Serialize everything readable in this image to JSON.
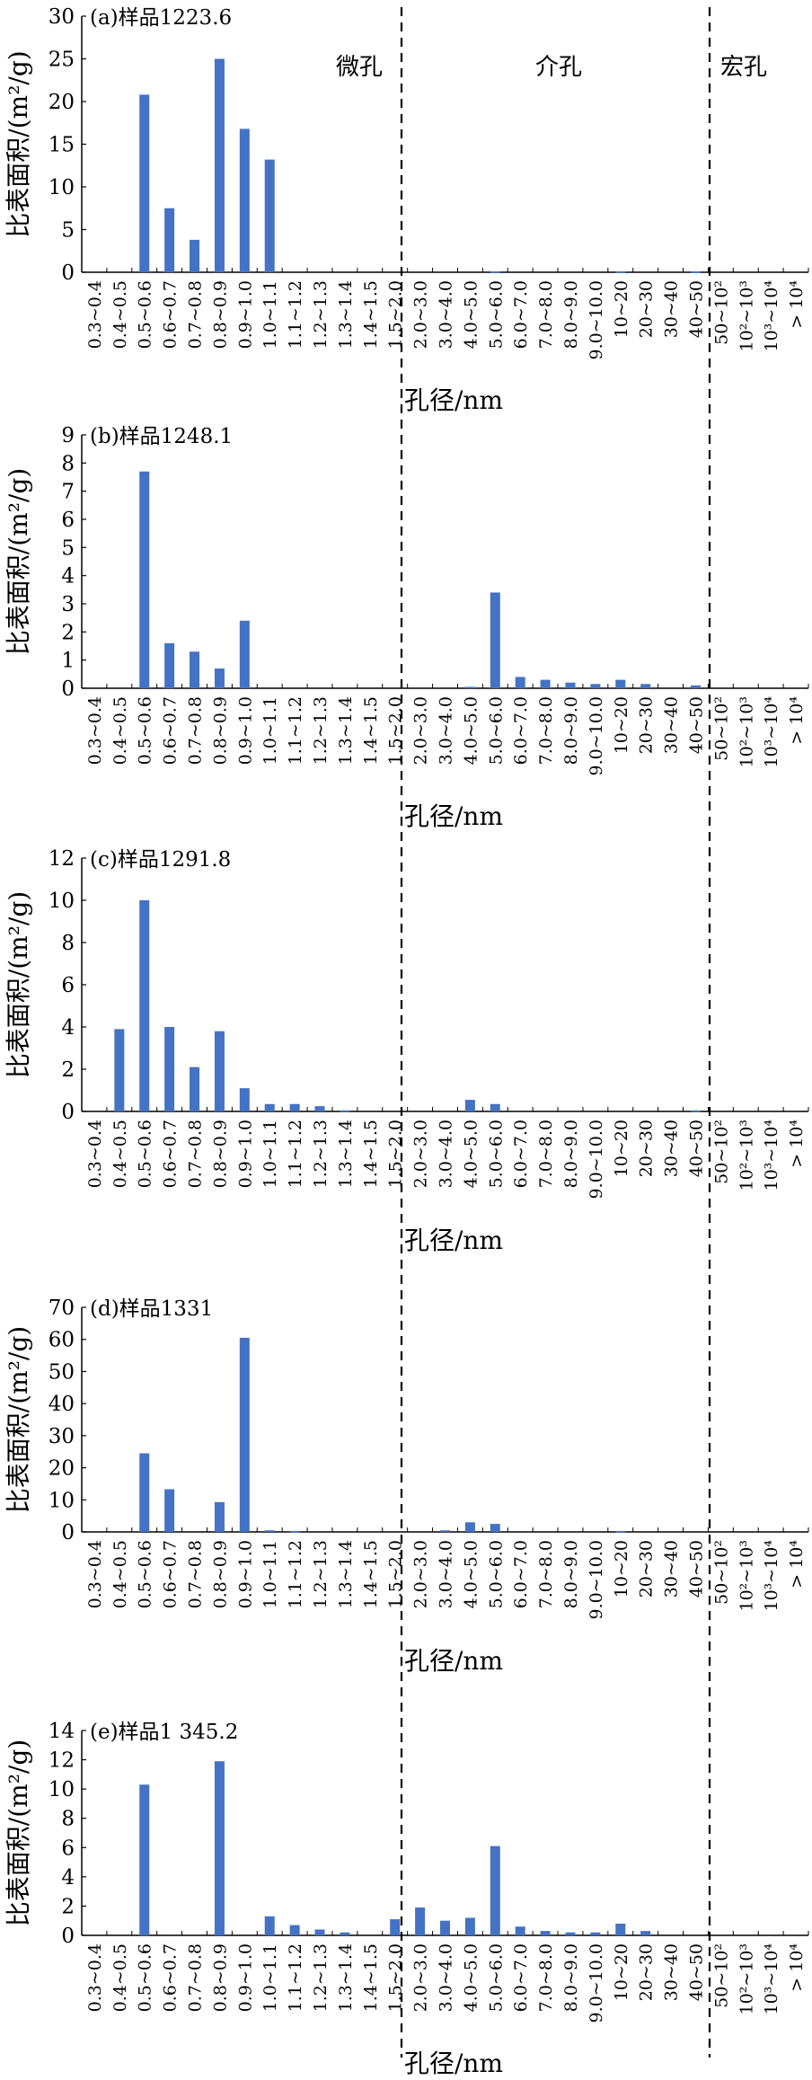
{
  "chart_data": [
    {
      "type": "bar",
      "title": "(a)样品1223.6",
      "xlabel": "孔径/nm",
      "ylabel": "比表面积/(m²/g)",
      "ylim": [
        0,
        30
      ],
      "yticks": [
        0,
        5,
        10,
        15,
        20,
        25,
        30
      ],
      "regions": [
        "微孔",
        "介孔",
        "宏孔"
      ],
      "categories": [
        "0.3~0.4",
        "0.4~0.5",
        "0.5~0.6",
        "0.6~0.7",
        "0.7~0.8",
        "0.8~0.9",
        "0.9~1.0",
        "1.0~1.1",
        "1.1~1.2",
        "1.2~1.3",
        "1.3~1.4",
        "1.4~1.5",
        "1.5~2.0",
        "2.0~3.0",
        "3.0~4.0",
        "4.0~5.0",
        "5.0~6.0",
        "6.0~7.0",
        "7.0~8.0",
        "8.0~9.0",
        "9.0~10.0",
        "10~20",
        "20~30",
        "30~40",
        "40~50",
        "50~10²",
        "10²~10³",
        "10³~10⁴",
        "> 10⁴"
      ],
      "values": [
        0,
        0,
        20.8,
        7.5,
        3.8,
        25.0,
        16.8,
        13.2,
        0,
        0,
        0,
        0,
        0,
        0,
        0,
        0,
        0.05,
        0,
        0,
        0,
        0,
        0.05,
        0,
        0,
        0.05,
        0,
        0,
        0,
        0
      ],
      "bar_color": "#4472C4"
    },
    {
      "type": "bar",
      "title": "(b)样品1248.1",
      "xlabel": "孔径/nm",
      "ylabel": "比表面积/(m²/g)",
      "ylim": [
        0,
        9
      ],
      "yticks": [
        0,
        1,
        2,
        3,
        4,
        5,
        6,
        7,
        8,
        9
      ],
      "categories": [
        "0.3~0.4",
        "0.4~0.5",
        "0.5~0.6",
        "0.6~0.7",
        "0.7~0.8",
        "0.8~0.9",
        "0.9~1.0",
        "1.0~1.1",
        "1.1~1.2",
        "1.2~1.3",
        "1.3~1.4",
        "1.4~1.5",
        "1.5~2.0",
        "2.0~3.0",
        "3.0~4.0",
        "4.0~5.0",
        "5.0~6.0",
        "6.0~7.0",
        "7.0~8.0",
        "8.0~9.0",
        "9.0~10.0",
        "10~20",
        "20~30",
        "30~40",
        "40~50",
        "50~10²",
        "10²~10³",
        "10³~10⁴",
        "> 10⁴"
      ],
      "values": [
        0,
        0,
        7.7,
        1.6,
        1.3,
        0.7,
        2.4,
        0,
        0,
        0,
        0,
        0,
        0,
        0,
        0,
        0.05,
        3.4,
        0.4,
        0.3,
        0.2,
        0.15,
        0.3,
        0.15,
        0,
        0.1,
        0,
        0,
        0,
        0
      ],
      "bar_color": "#4472C4"
    },
    {
      "type": "bar",
      "title": "(c)样品1291.8",
      "xlabel": "孔径/nm",
      "ylabel": "比表面积/(m²/g)",
      "ylim": [
        0,
        12
      ],
      "yticks": [
        0,
        2,
        4,
        6,
        8,
        10,
        12
      ],
      "categories": [
        "0.3~0.4",
        "0.4~0.5",
        "0.5~0.6",
        "0.6~0.7",
        "0.7~0.8",
        "0.8~0.9",
        "0.9~1.0",
        "1.0~1.1",
        "1.1~1.2",
        "1.2~1.3",
        "1.3~1.4",
        "1.4~1.5",
        "1.5~2.0",
        "2.0~3.0",
        "3.0~4.0",
        "4.0~5.0",
        "5.0~6.0",
        "6.0~7.0",
        "7.0~8.0",
        "8.0~9.0",
        "9.0~10.0",
        "10~20",
        "20~30",
        "30~40",
        "40~50",
        "50~10²",
        "10²~10³",
        "10³~10⁴",
        "> 10⁴"
      ],
      "values": [
        0,
        3.9,
        10.0,
        4.0,
        2.1,
        3.8,
        1.1,
        0.35,
        0.35,
        0.25,
        0.05,
        0,
        0,
        0,
        0,
        0.55,
        0.35,
        0,
        0,
        0,
        0,
        0,
        0,
        0,
        0.05,
        0,
        0,
        0,
        0
      ],
      "bar_color": "#4472C4"
    },
    {
      "type": "bar",
      "title": "(d)样品1331",
      "xlabel": "孔径/nm",
      "ylabel": "比表面积/(m²/g)",
      "ylim": [
        0,
        70
      ],
      "yticks": [
        0,
        10,
        20,
        30,
        40,
        50,
        60,
        70
      ],
      "categories": [
        "0.3~0.4",
        "0.4~0.5",
        "0.5~0.6",
        "0.6~0.7",
        "0.7~0.8",
        "0.8~0.9",
        "0.9~1.0",
        "1.0~1.1",
        "1.1~1.2",
        "1.2~1.3",
        "1.3~1.4",
        "1.4~1.5",
        "1.5~2.0",
        "2.0~3.0",
        "3.0~4.0",
        "4.0~5.0",
        "5.0~6.0",
        "6.0~7.0",
        "7.0~8.0",
        "8.0~9.0",
        "9.0~10.0",
        "10~20",
        "20~30",
        "30~40",
        "40~50",
        "50~10²",
        "10²~10³",
        "10³~10⁴",
        "> 10⁴"
      ],
      "values": [
        0,
        0,
        24.5,
        13.3,
        0,
        9.3,
        60.5,
        0.5,
        0.3,
        0,
        0,
        0,
        0,
        0,
        0.5,
        3.0,
        2.5,
        0,
        0,
        0,
        0,
        0.3,
        0,
        0,
        0,
        0,
        0,
        0,
        0
      ],
      "bar_color": "#4472C4"
    },
    {
      "type": "bar",
      "title": "(e)样品1 345.2",
      "xlabel": "孔径/nm",
      "ylabel": "比表面积/(m²/g)",
      "ylim": [
        0,
        14
      ],
      "yticks": [
        0,
        2,
        4,
        6,
        8,
        10,
        12,
        14
      ],
      "categories": [
        "0.3~0.4",
        "0.4~0.5",
        "0.5~0.6",
        "0.6~0.7",
        "0.7~0.8",
        "0.8~0.9",
        "0.9~1.0",
        "1.0~1.1",
        "1.1~1.2",
        "1.2~1.3",
        "1.3~1.4",
        "1.4~1.5",
        "1.5~2.0",
        "2.0~3.0",
        "3.0~4.0",
        "4.0~5.0",
        "5.0~6.0",
        "6.0~7.0",
        "7.0~8.0",
        "8.0~9.0",
        "9.0~10.0",
        "10~20",
        "20~30",
        "30~40",
        "40~50",
        "50~10²",
        "10²~10³",
        "10³~10⁴",
        "> 10⁴"
      ],
      "values": [
        0,
        0,
        10.3,
        0,
        0,
        11.9,
        0,
        1.3,
        0.7,
        0.4,
        0.2,
        0,
        1.1,
        1.9,
        1.0,
        1.2,
        6.1,
        0.6,
        0.3,
        0.2,
        0.2,
        0.8,
        0.3,
        0,
        0,
        0,
        0,
        0,
        0
      ],
      "bar_color": "#4472C4"
    }
  ]
}
